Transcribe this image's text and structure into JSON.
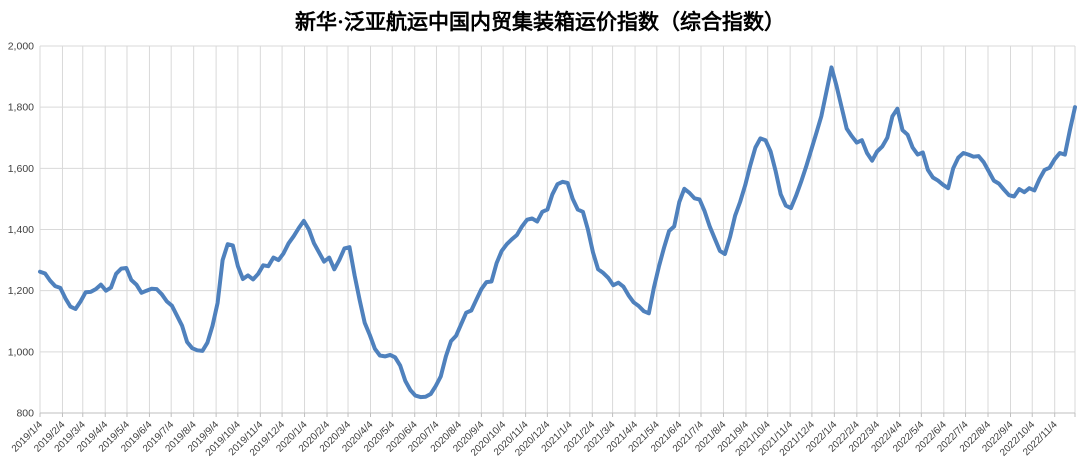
{
  "title": "新华·泛亚航运中国内贸集装箱运价指数（综合指数）",
  "chart_data": {
    "type": "line",
    "title": "新华·泛亚航运中国内贸集装箱运价指数（综合指数）",
    "legend_position": "none",
    "grid": true,
    "line_color": "#4F81BD",
    "grid_color": "#d9d9d9",
    "axis_color": "#bfbfbf",
    "label_color": "#3f3f3f",
    "y_axis": {
      "min": 800,
      "max": 2000,
      "step": 200,
      "tick_labels": [
        "800",
        "1,000",
        "1,200",
        "1,400",
        "1,600",
        "1,800",
        "2,000"
      ]
    },
    "x_axis": {
      "rotation": -45,
      "tick_labels": [
        "2019/1/4",
        "2019/2/4",
        "2019/3/4",
        "2019/4/4",
        "2019/5/4",
        "2019/6/4",
        "2019/7/4",
        "2019/8/4",
        "2019/9/4",
        "2019/10/4",
        "2019/11/4",
        "2019/12/4",
        "2020/1/4",
        "2020/2/4",
        "2020/3/4",
        "2020/4/4",
        "2020/5/4",
        "2020/6/4",
        "2020/7/4",
        "2020/8/4",
        "2020/9/4",
        "2020/10/4",
        "2020/11/4",
        "2020/12/4",
        "2021/1/4",
        "2021/2/4",
        "2021/3/4",
        "2021/4/4",
        "2021/5/4",
        "2021/6/4",
        "2021/7/4",
        "2021/8/4",
        "2021/9/4",
        "2021/10/4",
        "2021/11/4",
        "2021/12/4",
        "2022/1/4",
        "2022/2/4",
        "2022/3/4",
        "2022/4/4",
        "2022/5/4",
        "2022/6/4",
        "2022/7/4",
        "2022/8/4",
        "2022/9/4",
        "2022/10/4",
        "2022/11/4"
      ]
    },
    "series": [
      {
        "name": "综合指数",
        "start_date": "2019/1/4",
        "interval_days": 7,
        "values": [
          1262,
          1256,
          1233,
          1215,
          1209,
          1175,
          1148,
          1140,
          1165,
          1195,
          1196,
          1205,
          1220,
          1200,
          1210,
          1255,
          1272,
          1274,
          1235,
          1220,
          1193,
          1200,
          1206,
          1205,
          1188,
          1165,
          1151,
          1118,
          1085,
          1032,
          1012,
          1005,
          1003,
          1030,
          1085,
          1160,
          1300,
          1352,
          1348,
          1280,
          1238,
          1250,
          1237,
          1255,
          1283,
          1280,
          1308,
          1300,
          1322,
          1355,
          1378,
          1405,
          1428,
          1400,
          1355,
          1325,
          1295,
          1308,
          1270,
          1300,
          1338,
          1342,
          1250,
          1170,
          1095,
          1055,
          1010,
          988,
          985,
          990,
          982,
          955,
          905,
          875,
          857,
          852,
          853,
          862,
          888,
          920,
          985,
          1035,
          1052,
          1090,
          1128,
          1135,
          1170,
          1205,
          1228,
          1230,
          1290,
          1330,
          1352,
          1368,
          1382,
          1410,
          1432,
          1436,
          1426,
          1458,
          1465,
          1515,
          1548,
          1556,
          1552,
          1500,
          1465,
          1458,
          1400,
          1325,
          1270,
          1258,
          1242,
          1218,
          1226,
          1213,
          1185,
          1162,
          1150,
          1133,
          1126,
          1210,
          1280,
          1340,
          1395,
          1410,
          1490,
          1533,
          1520,
          1502,
          1498,
          1460,
          1410,
          1370,
          1330,
          1320,
          1375,
          1445,
          1490,
          1545,
          1610,
          1668,
          1698,
          1692,
          1655,
          1590,
          1515,
          1478,
          1470,
          1510,
          1555,
          1605,
          1660,
          1715,
          1770,
          1850,
          1930,
          1870,
          1800,
          1730,
          1705,
          1684,
          1692,
          1650,
          1625,
          1655,
          1671,
          1700,
          1770,
          1795,
          1725,
          1710,
          1668,
          1645,
          1652,
          1595,
          1570,
          1560,
          1546,
          1535,
          1600,
          1635,
          1650,
          1645,
          1638,
          1640,
          1620,
          1590,
          1560,
          1550,
          1530,
          1512,
          1508,
          1532,
          1522,
          1535,
          1528,
          1565,
          1595,
          1602,
          1630,
          1650,
          1645,
          1725,
          1800
        ]
      }
    ]
  }
}
